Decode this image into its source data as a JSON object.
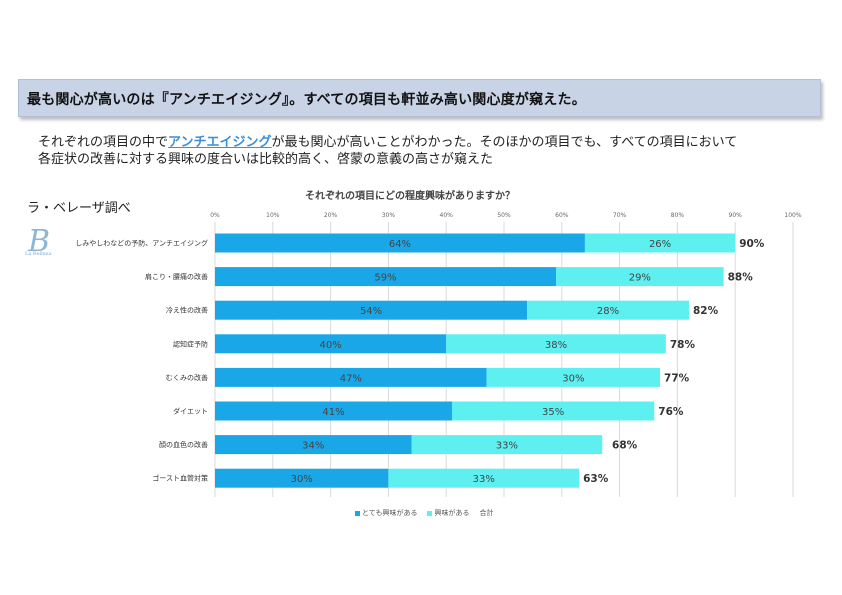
{
  "headline": "最も関心が高いのは『アンチエイジング』。すべての項目も軒並み高い関心度が窺えた。",
  "summary": {
    "pre": "それぞれの項目の中で",
    "highlight": "アンチエイジング",
    "post": "が最も関心が高いことがわかった。そのほかの項目でも、すべての項目において",
    "line2": "各症状の改善に対する興味の度合いは比較的高く、啓蒙の意義の高さが窺えた"
  },
  "source": "ラ・ベレーザ調べ",
  "logo": {
    "text": "La Belleza",
    "letter": "B"
  },
  "colors": {
    "very": "#1aa7e8",
    "some": "#5ef0f0",
    "grid": "#d9d9d9"
  },
  "chart_data": {
    "type": "bar",
    "orientation": "horizontal",
    "stacked": true,
    "title": "それぞれの項目にどの程度興味がありますか？",
    "xlim": [
      0,
      100
    ],
    "x_ticks": [
      "0%",
      "10%",
      "20%",
      "30%",
      "40%",
      "50%",
      "60%",
      "70%",
      "80%",
      "90%",
      "100%"
    ],
    "categories": [
      "しみやしわなどの予防、アンチエイジング",
      "肩こり・腰痛の改善",
      "冷え性の改善",
      "認知症予防",
      "むくみの改善",
      "ダイエット",
      "顔の血色の改善",
      "ゴースト血管対策"
    ],
    "series": [
      {
        "name": "とても興味がある",
        "values": [
          64,
          59,
          54,
          40,
          47,
          41,
          34,
          30
        ],
        "labels": [
          "64%",
          "59%",
          "54%",
          "40%",
          "47%",
          "41%",
          "34%",
          "30%"
        ]
      },
      {
        "name": "興味がある",
        "values": [
          26,
          29,
          28,
          38,
          30,
          35,
          33,
          33
        ],
        "labels": [
          "26%",
          "29%",
          "28%",
          "38%",
          "30%",
          "35%",
          "33%",
          "33%"
        ]
      }
    ],
    "totals": {
      "name": "合計",
      "values": [
        90,
        88,
        82,
        78,
        77,
        76,
        68,
        63
      ],
      "labels": [
        "90%",
        "88%",
        "82%",
        "78%",
        "77%",
        "76%",
        "68%",
        "63%"
      ]
    },
    "legend": "bottom",
    "grid": true
  }
}
